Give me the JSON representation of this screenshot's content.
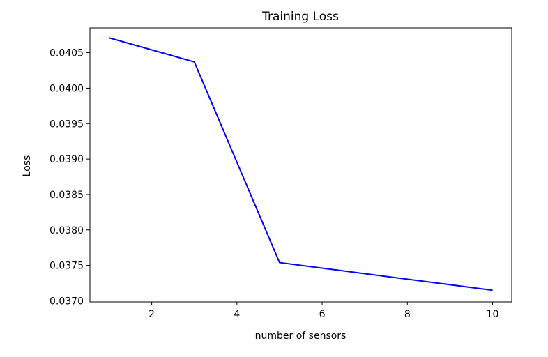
{
  "chart_data": {
    "type": "line",
    "title": "Training Loss",
    "xlabel": "number of sensors",
    "ylabel": "Loss",
    "xlim": [
      0.55,
      10.45
    ],
    "ylim": [
      0.036985,
      0.04085
    ],
    "xticks": [
      2,
      4,
      6,
      8,
      10
    ],
    "xtick_labels": [
      "2",
      "4",
      "6",
      "8",
      "10"
    ],
    "yticks": [
      0.037,
      0.0375,
      0.038,
      0.0385,
      0.039,
      0.0395,
      0.04,
      0.0405
    ],
    "ytick_labels": [
      "0.0370",
      "0.0375",
      "0.0380",
      "0.0385",
      "0.0390",
      "0.0395",
      "0.0400",
      "0.0405"
    ],
    "grid": false,
    "legend": null,
    "series": [
      {
        "name": "Training Loss",
        "color": "#0000ff",
        "x": [
          1,
          3,
          5,
          10
        ],
        "y": [
          0.04071,
          0.04037,
          0.03754,
          0.03715
        ]
      }
    ]
  }
}
